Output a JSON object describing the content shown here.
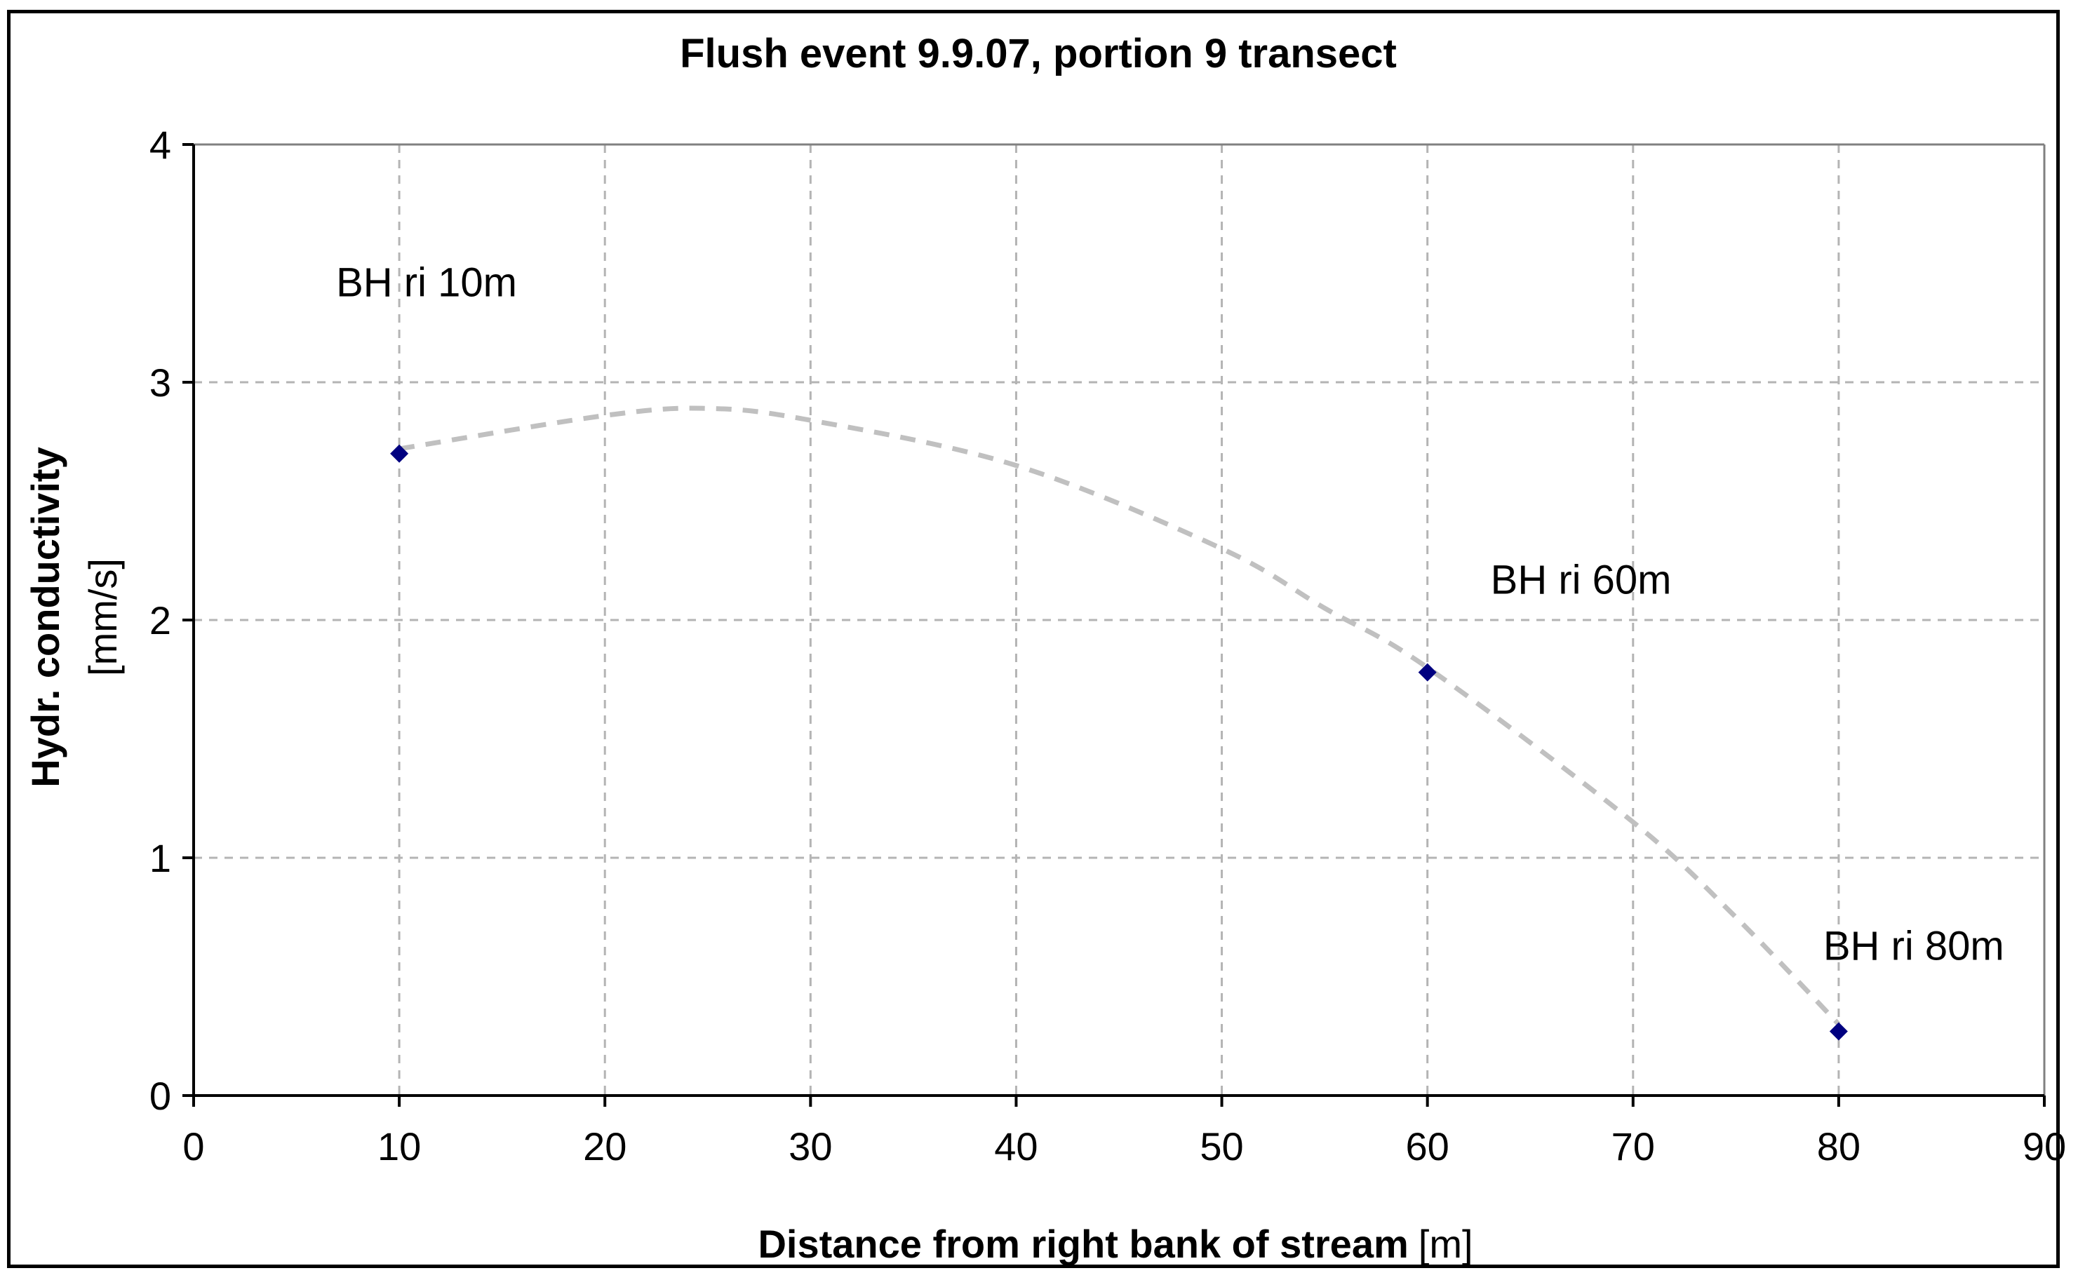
{
  "chart_data": {
    "type": "scatter",
    "title": "Flush event 9.9.07, portion 9 transect",
    "xlabel": "Distance from right bank of stream",
    "xlabel_unit": "[m]",
    "ylabel": "Hydr. conductivity",
    "ylabel_unit": "[mm/s]",
    "xlim": [
      0,
      90
    ],
    "ylim": [
      0,
      4
    ],
    "x_ticks": [
      0,
      10,
      20,
      30,
      40,
      50,
      60,
      70,
      80,
      90
    ],
    "y_ticks": [
      0,
      1,
      2,
      3,
      4
    ],
    "grid": true,
    "legend": "none",
    "points": [
      {
        "x": 10,
        "y": 2.7,
        "label": "BH ri 10m"
      },
      {
        "x": 60,
        "y": 1.78,
        "label": "BH ri 60m"
      },
      {
        "x": 80,
        "y": 0.27,
        "label": "BH ri 80m"
      }
    ],
    "trend_curve": {
      "style": "dashed",
      "points": [
        [
          10,
          2.72
        ],
        [
          20,
          2.86
        ],
        [
          25,
          2.89
        ],
        [
          30,
          2.84
        ],
        [
          40,
          2.65
        ],
        [
          50,
          2.3
        ],
        [
          55,
          2.05
        ],
        [
          60,
          1.8
        ],
        [
          70,
          1.15
        ],
        [
          75,
          0.75
        ],
        [
          80,
          0.3
        ]
      ]
    },
    "colors": {
      "marker": "#000080",
      "trend": "#c0c0c0",
      "grid": "#b4b4b4",
      "axis": "#000000"
    }
  }
}
